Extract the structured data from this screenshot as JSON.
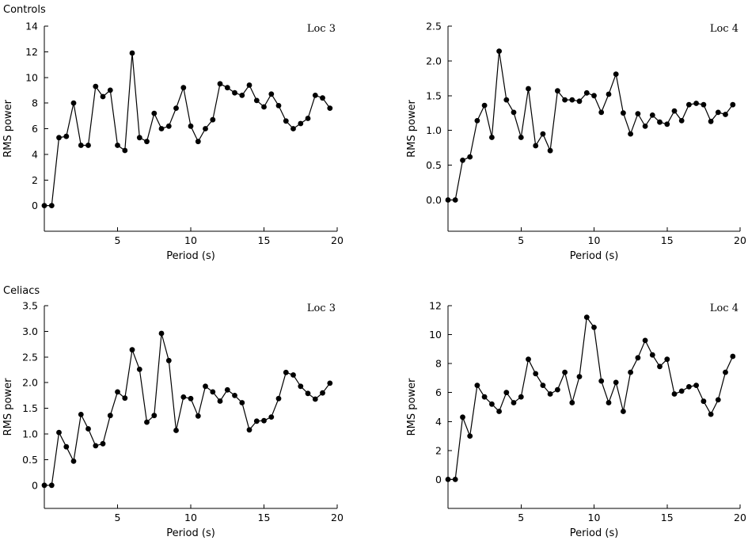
{
  "group_labels": [
    "Controls",
    "Celiacs"
  ],
  "chart_data": [
    {
      "type": "line",
      "title": "Loc 3",
      "group": "Controls",
      "xlabel": "Period (s)",
      "ylabel": "RMS power",
      "xlim": [
        0,
        20
      ],
      "ylim": [
        -2,
        14
      ],
      "xticks": [
        5,
        10,
        15,
        20
      ],
      "xtick_labels": [
        "5",
        "10",
        "15",
        "20"
      ],
      "yticks": [
        0,
        2,
        4,
        6,
        8,
        10,
        12,
        14
      ],
      "ytick_labels": [
        "0",
        "2",
        "4",
        "6",
        "8",
        "10",
        "12",
        "14"
      ],
      "grid": false,
      "x": [
        0.0,
        0.5,
        1.0,
        1.5,
        2.0,
        2.5,
        3.0,
        3.5,
        4.0,
        4.5,
        5.0,
        5.5,
        6.0,
        6.5,
        7.0,
        7.5,
        8.0,
        8.5,
        9.0,
        9.5,
        10.0,
        10.5,
        11.0,
        11.5,
        12.0,
        12.5,
        13.0,
        13.5,
        14.0,
        14.5,
        15.0,
        15.5,
        16.0,
        16.5,
        17.0,
        17.5,
        18.0,
        18.5,
        19.0,
        19.5,
        20.0
      ],
      "y": [
        0.0,
        0.0,
        5.3,
        5.4,
        8.0,
        4.7,
        4.7,
        9.3,
        8.5,
        9.0,
        4.7,
        4.3,
        11.9,
        5.3,
        5.0,
        7.2,
        6.0,
        6.2,
        7.6,
        9.2,
        6.2,
        5.0,
        6.0,
        6.7,
        9.5,
        9.2,
        8.8,
        8.6,
        9.4,
        8.2,
        7.7,
        8.7,
        7.8,
        6.6,
        6.0,
        6.4,
        6.8,
        8.6,
        8.4,
        7.6,
        null
      ]
    },
    {
      "type": "line",
      "title": "Loc 4",
      "group": "Controls",
      "xlabel": "Period (s)",
      "ylabel": "RMS power",
      "xlim": [
        0,
        20
      ],
      "ylim": [
        -0.45,
        2.5
      ],
      "xticks": [
        5,
        10,
        15,
        20
      ],
      "xtick_labels": [
        "5",
        "10",
        "15",
        "20"
      ],
      "yticks": [
        0,
        0.5,
        1.0,
        1.5,
        2.0,
        2.5
      ],
      "ytick_labels": [
        "0.0",
        "0.5",
        "1.0",
        "1.5",
        "2.0",
        "2.5"
      ],
      "grid": false,
      "x": [
        0.0,
        0.5,
        1.0,
        1.5,
        2.0,
        2.5,
        3.0,
        3.5,
        4.0,
        4.5,
        5.0,
        5.5,
        6.0,
        6.5,
        7.0,
        7.5,
        8.0,
        8.5,
        9.0,
        9.5,
        10.0,
        10.5,
        11.0,
        11.5,
        12.0,
        12.5,
        13.0,
        13.5,
        14.0,
        14.5,
        15.0,
        15.5,
        16.0,
        16.5,
        17.0,
        17.5,
        18.0,
        18.5,
        19.0,
        19.5,
        20.0
      ],
      "y": [
        0.0,
        0.0,
        0.57,
        0.62,
        1.14,
        1.36,
        0.9,
        2.14,
        1.44,
        1.26,
        0.9,
        1.6,
        0.78,
        0.95,
        0.71,
        1.57,
        1.44,
        1.44,
        1.42,
        1.54,
        1.5,
        1.26,
        1.52,
        1.81,
        1.25,
        0.95,
        1.24,
        1.06,
        1.22,
        1.12,
        1.09,
        1.28,
        1.14,
        1.37,
        1.39,
        1.37,
        1.13,
        1.26,
        1.23,
        1.37,
        null
      ]
    },
    {
      "type": "line",
      "title": "Loc 3",
      "group": "Celiacs",
      "xlabel": "Period (s)",
      "ylabel": "RMS power",
      "xlim": [
        0,
        20
      ],
      "ylim": [
        -0.45,
        3.5
      ],
      "xticks": [
        5,
        10,
        15,
        20
      ],
      "xtick_labels": [
        "5",
        "10",
        "15",
        "20"
      ],
      "yticks": [
        0,
        0.5,
        1.0,
        1.5,
        2.0,
        2.5,
        3.0,
        3.5
      ],
      "ytick_labels": [
        "0",
        "0.5",
        "1.0",
        "1.5",
        "2.0",
        "2.5",
        "3.0",
        "3.5"
      ],
      "grid": false,
      "x": [
        0.0,
        0.5,
        1.0,
        1.5,
        2.0,
        2.5,
        3.0,
        3.5,
        4.0,
        4.5,
        5.0,
        5.5,
        6.0,
        6.5,
        7.0,
        7.5,
        8.0,
        8.5,
        9.0,
        9.5,
        10.0,
        10.5,
        11.0,
        11.5,
        12.0,
        12.5,
        13.0,
        13.5,
        14.0,
        14.5,
        15.0,
        15.5,
        16.0,
        16.5,
        17.0,
        17.5,
        18.0,
        18.5,
        19.0,
        19.5,
        20.0
      ],
      "y": [
        0.0,
        0.0,
        1.03,
        0.75,
        0.47,
        1.38,
        1.1,
        0.77,
        0.81,
        1.36,
        1.82,
        1.7,
        2.64,
        2.26,
        1.23,
        1.36,
        2.96,
        2.43,
        1.07,
        1.72,
        1.69,
        1.35,
        1.93,
        1.82,
        1.64,
        1.86,
        1.75,
        1.61,
        1.08,
        1.25,
        1.26,
        1.33,
        1.69,
        2.2,
        2.15,
        1.93,
        1.79,
        1.68,
        1.8,
        1.99,
        null
      ]
    },
    {
      "type": "line",
      "title": "Loc 4",
      "group": "Celiacs",
      "xlabel": "Period (s)",
      "ylabel": "RMS power",
      "xlim": [
        0,
        20
      ],
      "ylim": [
        -2,
        12
      ],
      "xticks": [
        5,
        10,
        15,
        20
      ],
      "xtick_labels": [
        "5",
        "10",
        "15",
        "20"
      ],
      "yticks": [
        0,
        2,
        4,
        6,
        8,
        10,
        12
      ],
      "ytick_labels": [
        "0",
        "2",
        "4",
        "6",
        "8",
        "10",
        "12"
      ],
      "grid": false,
      "x": [
        0.0,
        0.5,
        1.0,
        1.5,
        2.0,
        2.5,
        3.0,
        3.5,
        4.0,
        4.5,
        5.0,
        5.5,
        6.0,
        6.5,
        7.0,
        7.5,
        8.0,
        8.5,
        9.0,
        9.5,
        10.0,
        10.5,
        11.0,
        11.5,
        12.0,
        12.5,
        13.0,
        13.5,
        14.0,
        14.5,
        15.0,
        15.5,
        16.0,
        16.5,
        17.0,
        17.5,
        18.0,
        18.5,
        19.0,
        19.5,
        20.0
      ],
      "y": [
        0.0,
        0.0,
        4.3,
        3.0,
        6.5,
        5.7,
        5.2,
        4.7,
        6.0,
        5.3,
        5.7,
        8.3,
        7.3,
        6.5,
        5.9,
        6.2,
        7.4,
        5.3,
        7.1,
        11.2,
        10.5,
        6.8,
        5.3,
        6.7,
        4.7,
        7.4,
        8.4,
        9.6,
        8.6,
        7.8,
        8.3,
        5.9,
        6.1,
        6.4,
        6.5,
        5.4,
        4.5,
        5.5,
        7.4,
        8.5,
        null
      ]
    }
  ]
}
